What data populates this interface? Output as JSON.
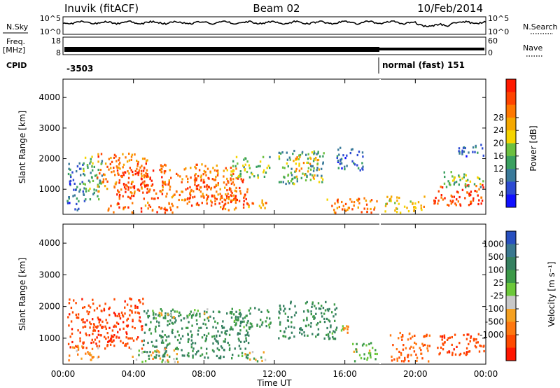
{
  "header": {
    "station": "Inuvik (fitACF)",
    "beam": "Beam 02",
    "date": "10/Feb/2014"
  },
  "left_labels": {
    "nsky": "N.Sky",
    "nsky_top": "10^5",
    "nsky_bottom": "10^0",
    "freq_line1": "Freq.",
    "freq_line2": "[MHz]",
    "freq_top": "18",
    "freq_bottom": "8",
    "cpid": "CPID"
  },
  "right_labels": {
    "nsearch": "N.Search",
    "nsearch_top": "10^5",
    "nsearch_bottom": "10^0",
    "nave": "Nave",
    "nave_top": "60",
    "nave_bottom": "0"
  },
  "cpid": {
    "left_value": "-3503",
    "right_value": "normal (fast) 151"
  },
  "axes": {
    "ylabel": "Slant Range [km]",
    "xlabel": "Time UT",
    "xticks": [
      "00:00",
      "04:00",
      "08:00",
      "12:00",
      "16:00",
      "20:00",
      "00:00"
    ],
    "yticks": [
      "1000",
      "2000",
      "3000",
      "4000"
    ]
  },
  "power_colorbar": {
    "label": "Power [dB]",
    "ticks": [
      "4",
      "8",
      "12",
      "16",
      "20",
      "24",
      "28"
    ],
    "colors": [
      "#1010ff",
      "#2d4bd2",
      "#3a7a9a",
      "#3aa060",
      "#6cc040",
      "#f5d400",
      "#f5a800",
      "#ff7800",
      "#ff4400",
      "#ff1a00"
    ]
  },
  "velocity_colorbar": {
    "label": "Velocity [m s⁻¹]",
    "ticks": [
      "1000",
      "500",
      "100",
      "25",
      "-25",
      "-100",
      "-500",
      "-1000"
    ],
    "colors": [
      "#2850c0",
      "#3a7890",
      "#358060",
      "#3c9a48",
      "#6cc83a",
      "#c8c8c8",
      "#f5a020",
      "#ff7810",
      "#ff4a00",
      "#ff1600"
    ]
  },
  "chart_data": [
    {
      "type": "heatmap",
      "name": "power",
      "x_range_hours": [
        0,
        24
      ],
      "ylim": [
        180,
        4600
      ],
      "value_label": "Power [dB]",
      "blobs": [
        {
          "t0": 0.2,
          "t1": 1.2,
          "r0": 350,
          "r1": 1900,
          "v": 8
        },
        {
          "t0": 1.0,
          "t1": 2.2,
          "r0": 700,
          "r1": 2100,
          "v": 12
        },
        {
          "t0": 1.9,
          "t1": 4.8,
          "r0": 900,
          "r1": 2200,
          "v": 24
        },
        {
          "t0": 3.0,
          "t1": 5.8,
          "r0": 700,
          "r1": 1700,
          "v": 28
        },
        {
          "t0": 5.5,
          "t1": 9.8,
          "r0": 650,
          "r1": 1850,
          "v": 24
        },
        {
          "t0": 7.0,
          "t1": 10.5,
          "r0": 500,
          "r1": 1400,
          "v": 27
        },
        {
          "t0": 9.5,
          "t1": 11.7,
          "r0": 1400,
          "r1": 2100,
          "v": 14
        },
        {
          "t0": 2.5,
          "t1": 6.5,
          "r0": 250,
          "r1": 600,
          "v": 26
        },
        {
          "t0": 8.8,
          "t1": 9.8,
          "r0": 250,
          "r1": 500,
          "v": 24
        },
        {
          "t0": 10.2,
          "t1": 11.6,
          "r0": 350,
          "r1": 700,
          "v": 22
        },
        {
          "t0": 12.2,
          "t1": 14.8,
          "r0": 1200,
          "r1": 2300,
          "v": 12
        },
        {
          "t0": 13.0,
          "t1": 14.5,
          "r0": 1400,
          "r1": 2100,
          "v": 20
        },
        {
          "t0": 15.5,
          "t1": 17.0,
          "r0": 1600,
          "r1": 2400,
          "v": 7
        },
        {
          "t0": 14.8,
          "t1": 17.8,
          "r0": 250,
          "r1": 750,
          "v": 24
        },
        {
          "t0": 18.2,
          "t1": 20.5,
          "r0": 250,
          "r1": 800,
          "v": 20
        },
        {
          "t0": 21.0,
          "t1": 24.0,
          "r0": 500,
          "r1": 1200,
          "v": 28
        },
        {
          "t0": 21.5,
          "t1": 24.0,
          "r0": 1100,
          "r1": 1600,
          "v": 14
        },
        {
          "t0": 22.2,
          "t1": 24.0,
          "r0": 2100,
          "r1": 2500,
          "v": 7
        }
      ]
    },
    {
      "type": "heatmap",
      "name": "velocity",
      "x_range_hours": [
        0,
        24
      ],
      "ylim": [
        180,
        4600
      ],
      "value_label": "Velocity [m s⁻¹]",
      "blobs": [
        {
          "t0": 0.2,
          "t1": 4.5,
          "r0": 700,
          "r1": 2300,
          "v": -450
        },
        {
          "t0": 0.2,
          "t1": 2.0,
          "r0": 300,
          "r1": 800,
          "v": -150
        },
        {
          "t0": 4.5,
          "t1": 10.5,
          "r0": 400,
          "r1": 1900,
          "v": 300
        },
        {
          "t0": 5.0,
          "t1": 8.5,
          "r0": 1650,
          "r1": 1950,
          "v": 60
        },
        {
          "t0": 9.5,
          "t1": 11.8,
          "r0": 1300,
          "r1": 2000,
          "v": 200
        },
        {
          "t0": 3.8,
          "t1": 6.5,
          "r0": 280,
          "r1": 700,
          "v": 0
        },
        {
          "t0": 10.0,
          "t1": 11.5,
          "r0": 300,
          "r1": 600,
          "v": 60
        },
        {
          "t0": 12.2,
          "t1": 15.5,
          "r0": 1000,
          "r1": 2200,
          "v": 300
        },
        {
          "t0": 15.2,
          "t1": 16.2,
          "r0": 1100,
          "r1": 1500,
          "v": 0
        },
        {
          "t0": 16.3,
          "t1": 17.8,
          "r0": 300,
          "r1": 900,
          "v": 80
        },
        {
          "t0": 18.5,
          "t1": 20.8,
          "r0": 300,
          "r1": 1200,
          "v": -250
        },
        {
          "t0": 21.2,
          "t1": 24.0,
          "r0": 450,
          "r1": 1200,
          "v": -400
        }
      ]
    }
  ]
}
